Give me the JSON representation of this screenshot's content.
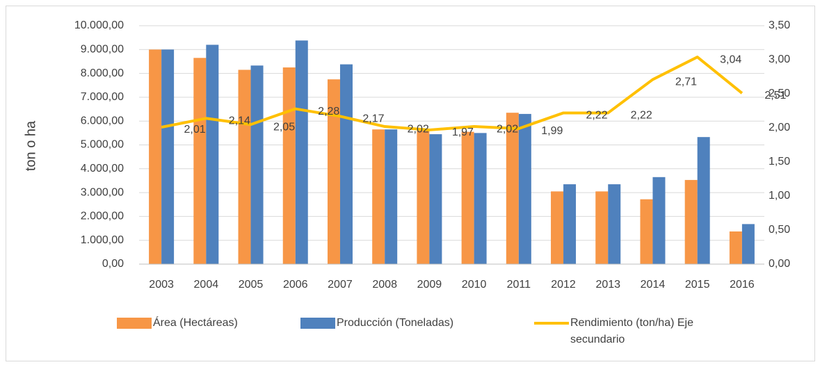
{
  "chart_data": {
    "type": "bar",
    "y_label": "ton o ha",
    "categories": [
      "2003",
      "2004",
      "2005",
      "2006",
      "2007",
      "2008",
      "2009",
      "2010",
      "2011",
      "2012",
      "2013",
      "2014",
      "2015",
      "2016"
    ],
    "series": [
      {
        "name": "Área (Hectáreas)",
        "color": "#f79646",
        "values": [
          9000,
          8650,
          8150,
          8250,
          7750,
          5650,
          5600,
          5550,
          6350,
          3050,
          3050,
          2720,
          3530,
          1370
        ]
      },
      {
        "name": "Producción (Toneladas)",
        "color": "#4f81bd",
        "values": [
          9000,
          9200,
          8330,
          9380,
          8380,
          5650,
          5450,
          5500,
          6300,
          3350,
          3350,
          3650,
          5330,
          1680
        ]
      },
      {
        "name": "Rendimiento (ton/ha) Eje secundario",
        "color": "#ffc000",
        "type": "line",
        "axis": "y2",
        "values": [
          2.01,
          2.14,
          2.05,
          2.28,
          2.17,
          2.02,
          1.97,
          2.02,
          1.99,
          2.22,
          2.22,
          2.71,
          3.04,
          2.51
        ],
        "value_labels": [
          "2,01",
          "2,14",
          "2,05",
          "2,28",
          "2,17",
          "2,02",
          "1,97",
          "2,02",
          "1,99",
          "2,22",
          "2,22",
          "2,71",
          "3,04",
          "2,51"
        ]
      }
    ],
    "ylim": [
      0,
      10000
    ],
    "yticks": [
      {
        "value": 0,
        "label": "0,00"
      },
      {
        "value": 1000,
        "label": "1.000,00"
      },
      {
        "value": 2000,
        "label": "2.000,00"
      },
      {
        "value": 3000,
        "label": "3.000,00"
      },
      {
        "value": 4000,
        "label": "4.000,00"
      },
      {
        "value": 5000,
        "label": "5.000,00"
      },
      {
        "value": 6000,
        "label": "6.000,00"
      },
      {
        "value": 7000,
        "label": "7.000,00"
      },
      {
        "value": 8000,
        "label": "8.000,00"
      },
      {
        "value": 9000,
        "label": "9.000,00"
      },
      {
        "value": 10000,
        "label": "10.000,00"
      }
    ],
    "y2lim": [
      0,
      3.5
    ],
    "y2ticks": [
      {
        "value": 0,
        "label": "0,00"
      },
      {
        "value": 0.5,
        "label": "0,50"
      },
      {
        "value": 1,
        "label": "1,00"
      },
      {
        "value": 1.5,
        "label": "1,50"
      },
      {
        "value": 2,
        "label": "2,00"
      },
      {
        "value": 2.5,
        "label": "2,50"
      },
      {
        "value": 3,
        "label": "3,00"
      },
      {
        "value": 3.5,
        "label": "3,50"
      }
    ],
    "grid": true,
    "legend": "bottom"
  }
}
